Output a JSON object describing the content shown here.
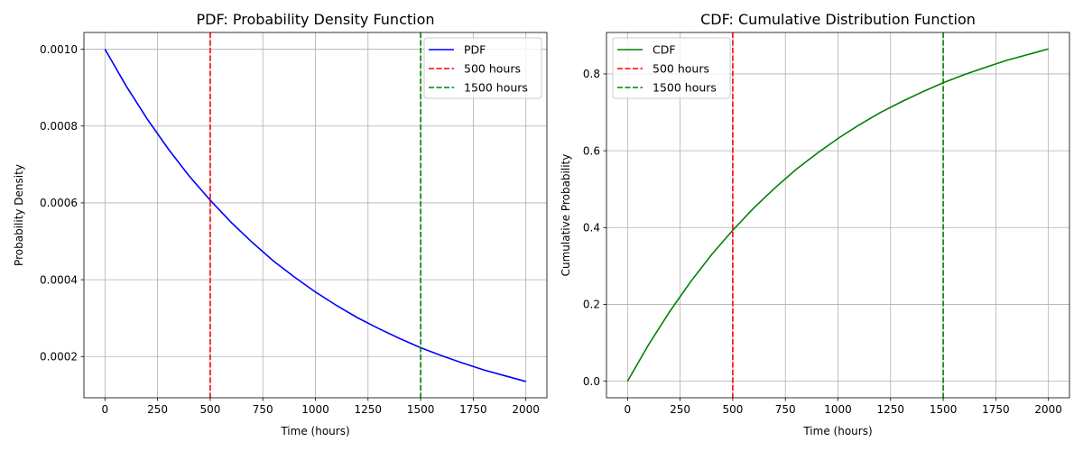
{
  "chart_data": [
    {
      "type": "line",
      "title": "PDF: Probability Density Function",
      "xlabel": "Time (hours)",
      "ylabel": "Probability Density",
      "xlim": [
        -100,
        2100
      ],
      "ylim": [
        9.26e-05,
        0.0010436
      ],
      "xticks": [
        0,
        250,
        500,
        750,
        1000,
        1250,
        1500,
        1750,
        2000
      ],
      "xtick_labels": [
        "0",
        "250",
        "500",
        "750",
        "1000",
        "1250",
        "1500",
        "1750",
        "2000"
      ],
      "yticks": [
        0.0002,
        0.0004,
        0.0006,
        0.0008,
        0.001
      ],
      "ytick_labels": [
        "0.0002",
        "0.0004",
        "0.0006",
        "0.0008",
        "0.0010"
      ],
      "grid": true,
      "legend_position": "top-right",
      "series": [
        {
          "name": "PDF",
          "color": "#0000ff",
          "x": [
            0,
            100,
            200,
            300,
            400,
            500,
            600,
            700,
            800,
            900,
            1000,
            1100,
            1200,
            1300,
            1400,
            1500,
            1600,
            1700,
            1800,
            1900,
            2000
          ],
          "y": [
            0.001,
            0.000905,
            0.000819,
            0.000741,
            0.00067,
            0.000607,
            0.000549,
            0.000497,
            0.000449,
            0.000407,
            0.000368,
            0.000333,
            0.000301,
            0.000273,
            0.000247,
            0.000223,
            0.000202,
            0.000183,
            0.000165,
            0.00015,
            0.000135
          ]
        }
      ],
      "vlines": [
        {
          "name": "500 hours",
          "x": 500,
          "color": "#ff0000"
        },
        {
          "name": "1500 hours",
          "x": 1500,
          "color": "#008000"
        }
      ]
    },
    {
      "type": "line",
      "title": "CDF: Cumulative Distribution Function",
      "xlabel": "Time (hours)",
      "ylabel": "Cumulative Probability",
      "xlim": [
        -100,
        2100
      ],
      "ylim": [
        -0.0432,
        0.9079
      ],
      "xticks": [
        0,
        250,
        500,
        750,
        1000,
        1250,
        1500,
        1750,
        2000
      ],
      "xtick_labels": [
        "0",
        "250",
        "500",
        "750",
        "1000",
        "1250",
        "1500",
        "1750",
        "2000"
      ],
      "yticks": [
        0.0,
        0.2,
        0.4,
        0.6,
        0.8
      ],
      "ytick_labels": [
        "0.0",
        "0.2",
        "0.4",
        "0.6",
        "0.8"
      ],
      "grid": true,
      "legend_position": "top-left",
      "series": [
        {
          "name": "CDF",
          "color": "#008000",
          "x": [
            0,
            100,
            200,
            300,
            400,
            500,
            600,
            700,
            800,
            900,
            1000,
            1100,
            1200,
            1300,
            1400,
            1500,
            1600,
            1700,
            1800,
            1900,
            2000
          ],
          "y": [
            0.0,
            0.095,
            0.181,
            0.259,
            0.33,
            0.393,
            0.451,
            0.503,
            0.551,
            0.593,
            0.632,
            0.667,
            0.699,
            0.727,
            0.753,
            0.777,
            0.798,
            0.817,
            0.835,
            0.85,
            0.865
          ]
        }
      ],
      "vlines": [
        {
          "name": "500 hours",
          "x": 500,
          "color": "#ff0000"
        },
        {
          "name": "1500 hours",
          "x": 1500,
          "color": "#008000"
        }
      ]
    }
  ]
}
